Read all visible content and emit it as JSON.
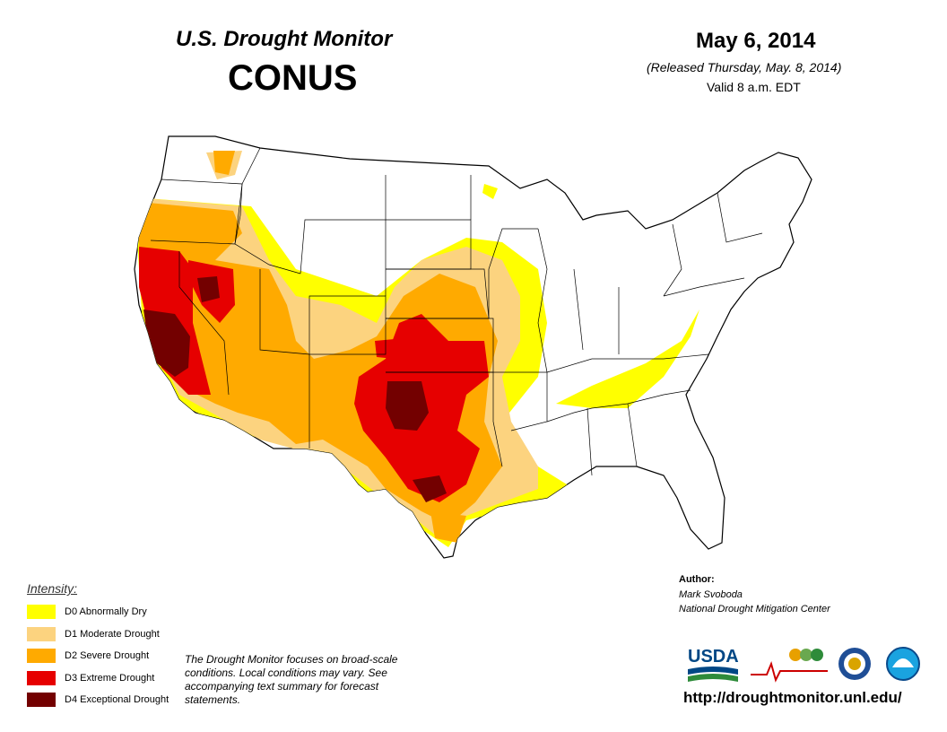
{
  "header": {
    "title": "U.S. Drought Monitor",
    "region": "CONUS",
    "date": "May 6, 2014",
    "released": "(Released Thursday, May. 8, 2014)",
    "valid": "Valid 8 a.m. EDT"
  },
  "legend": {
    "title": "Intensity:",
    "items": [
      {
        "label": "D0 Abnormally Dry",
        "color": "#ffff00"
      },
      {
        "label": "D1 Moderate Drought",
        "color": "#fcd37f"
      },
      {
        "label": "D2 Severe Drought",
        "color": "#ffaa00"
      },
      {
        "label": "D3 Extreme Drought",
        "color": "#e60000"
      },
      {
        "label": "D4 Exceptional Drought",
        "color": "#730000"
      }
    ]
  },
  "disclaimer": "The Drought Monitor focuses on broad-scale conditions. Local conditions may vary. See accompanying text summary for forecast statements.",
  "author": {
    "heading": "Author:",
    "name": "Mark Svoboda",
    "organization": "National Drought Mitigation Center"
  },
  "url": "http://droughtmonitor.unl.edu/",
  "logos": {
    "usda": "USDA",
    "ndmc": "National Drought Mitigation Center"
  }
}
